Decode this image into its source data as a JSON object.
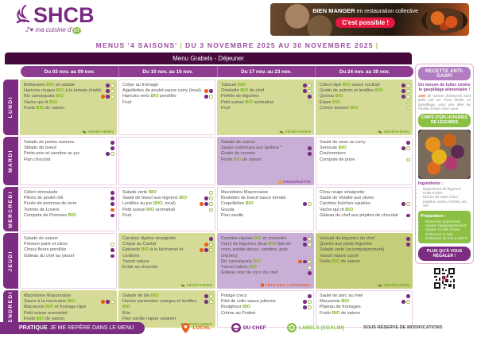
{
  "colors": {
    "brand_purple": "#7b2982",
    "dark_header": "#45093c",
    "week_header": "#8d3c92",
    "cell_green": "#d5db96",
    "cell_purple": "#c9aed6",
    "bio_green": "#7db41e",
    "local_orange": "#e8611c",
    "labels_green": "#8bc045",
    "banner_red": "#e5173f"
  },
  "header": {
    "logo_text": "SHCB",
    "tagline_prefix": "J'♥ ma cuisine d'",
    "tagline_circle": "ici",
    "banner_bold": "BIEN MANGER",
    "banner_rest": "en restauration collective",
    "banner_pill": "C'est possible !"
  },
  "title": {
    "left": "MENUS '4 SAISONS'",
    "sep1": "|",
    "right": "DU 3 NOVEMBRE 2025 AU 30 NOVEMBRE 2025",
    "sep2": "|"
  },
  "menu": {
    "title": "Menu Grabels - Déjeuner",
    "weeks": [
      "Du 03 nov. au 09 nov.",
      "Du 10 nov. au 16 nov.",
      "Du 17 nov. au 23 nov.",
      "Du 24 nov. au 30 nov."
    ],
    "days": [
      {
        "label": "LUNDI",
        "cells": [
          {
            "bg": "green",
            "items": [
              {
                "t": "Betteraves BIO en salade",
                "b": [
                  "C",
                  "E"
                ]
              },
              {
                "t": "Haricots rouges BIO à la tomate (mafé)",
                "b": [
                  "C",
                  "E"
                ]
              },
              {
                "t": "Riz camarguais BIO",
                "b": [
                  "L",
                  "C",
                  "E"
                ]
              },
              {
                "t": "Vache qui rit BIO",
                "b": []
              },
              {
                "t": "Fruits BIO de saison",
                "b": []
              }
            ],
            "tag": {
              "type": "vegetarien",
              "text": "VÉGÉTARIEN"
            }
          },
          {
            "bg": "white",
            "items": [
              {
                "t": "Crêpe au fromage",
                "b": []
              },
              {
                "t": "Aiguillettes de poulet sauce curry (local)",
                "b": [
                  "L",
                  "C"
                ]
              },
              {
                "t": "Haricots verts BIO persillés",
                "b": [
                  "C",
                  "E"
                ]
              },
              {
                "t": "Fruit",
                "b": []
              }
            ]
          },
          {
            "bg": "green",
            "items": [
              {
                "t": "Taboulé BIO",
                "b": [
                  "C",
                  "E"
                ]
              },
              {
                "t": "Omelette BIO du chef",
                "b": [
                  "C",
                  "E"
                ]
              },
              {
                "t": "Poêlée de légumes",
                "b": [
                  "C"
                ]
              },
              {
                "t": "Petit suisse BIO aromatisé",
                "b": [
                  "E"
                ]
              },
              {
                "t": "Fruit",
                "b": []
              }
            ],
            "tag": {
              "type": "vegetarien",
              "text": "VÉGÉTARIEN"
            }
          },
          {
            "bg": "green",
            "items": [
              {
                "t": "Céleri râpé BIO sauce cocktail",
                "b": [
                  "C",
                  "E"
                ]
              },
              {
                "t": "Gratin de potiron et lentilles BIO",
                "b": [
                  "C",
                  "E"
                ]
              },
              {
                "t": "Quinoa BIO",
                "b": [
                  "C",
                  "E"
                ]
              },
              {
                "t": "Edam BIO",
                "b": [
                  "E"
                ]
              },
              {
                "t": "Crème dessert BIO",
                "b": [
                  "E"
                ]
              }
            ],
            "tag": {
              "type": "vegetarien",
              "text": "VÉGÉTARIEN"
            }
          }
        ]
      },
      {
        "label": "MARDI",
        "cells": [
          {
            "bg": "white",
            "items": [
              {
                "t": "Salade de perles marines",
                "b": [
                  "C"
                ]
              },
              {
                "t": "Stifado de boeuf",
                "b": [
                  "C"
                ]
              },
              {
                "t": "Petits pois et carottes au jus",
                "b": [
                  "C",
                  "E"
                ]
              },
              {
                "t": "Flan chocolat",
                "b": []
              }
            ]
          },
          {
            "bg": "white",
            "items": []
          },
          {
            "bg": "purple",
            "items": [
              {
                "t": "Salade de saison",
                "b": []
              },
              {
                "t": "Sauce carbonara aux lardons *",
                "b": [
                  "C"
                ]
              },
              {
                "t": "Gratin de crozets",
                "b": [
                  "C"
                ]
              },
              {
                "t": "Fruits BIO de saison",
                "b": []
              }
            ],
            "tag": {
              "type": "croziflette",
              "text": "CROZIFLETTE"
            }
          },
          {
            "bg": "white",
            "items": [
              {
                "t": "Sauté de veau au curry",
                "b": [
                  "C"
                ]
              },
              {
                "t": "Semoule BIO",
                "b": [
                  "C",
                  "E"
                ]
              },
              {
                "t": "Coulommiers",
                "b": []
              },
              {
                "t": "Compote de poire",
                "b": [
                  "E"
                ]
              }
            ]
          }
        ]
      },
      {
        "label": "MERCREDI",
        "cells": [
          {
            "bg": "white",
            "items": [
              {
                "t": "Céleri rémoulade",
                "b": [
                  "C"
                ]
              },
              {
                "t": "Pilons de poulet rôti",
                "b": [
                  "C"
                ]
              },
              {
                "t": "Purée de pommes de terre",
                "b": [
                  "C"
                ]
              },
              {
                "t": "Tomme de Lozère",
                "b": [
                  "L"
                ]
              },
              {
                "t": "Compote de Pommes BIO",
                "b": [
                  "C"
                ]
              }
            ]
          },
          {
            "bg": "white",
            "items": [
              {
                "t": "Salade verte BIO",
                "b": [
                  "E"
                ]
              },
              {
                "t": "Sauté de boeuf aux oignons BIO",
                "b": [
                  "C",
                  "E"
                ]
              },
              {
                "t": "Lentilles au jus (BIO, local)",
                "b": [
                  "L",
                  "C",
                  "E"
                ]
              },
              {
                "t": "Petit suisse BIO aromatisé",
                "b": [
                  "E"
                ]
              },
              {
                "t": "Fruit",
                "b": []
              }
            ]
          },
          {
            "bg": "white",
            "items": [
              {
                "t": "Macédoine Mayonnaise",
                "b": []
              },
              {
                "t": "Boulettes de boeuf sauce tomate",
                "b": []
              },
              {
                "t": "Coquillettes BIO",
                "b": [
                  "C",
                  "E"
                ]
              },
              {
                "t": "Gouda",
                "b": []
              },
              {
                "t": "Flan vanille",
                "b": []
              }
            ]
          },
          {
            "bg": "white",
            "items": [
              {
                "t": "Chou rouge vinaigrette",
                "b": []
              },
              {
                "t": "Sauté de Volaille aux olives",
                "b": []
              },
              {
                "t": "Carottes fraîches sautées",
                "b": [
                  "C",
                  "E"
                ]
              },
              {
                "t": "Vache qui rit BIO",
                "b": []
              },
              {
                "t": "Gâteau du chef aux pépites de chocolat",
                "b": [
                  "C"
                ]
              }
            ]
          }
        ]
      },
      {
        "label": "JEUDI",
        "cells": [
          {
            "bg": "white",
            "items": [
              {
                "t": "Salade de saison",
                "b": []
              },
              {
                "t": "Poisson pané et citron",
                "b": [
                  "E"
                ]
              },
              {
                "t": "Choux fleurs persillés",
                "b": [
                  "C"
                ]
              },
              {
                "t": "Gâteau du chef au yaourt",
                "b": [
                  "C"
                ]
              }
            ]
          },
          {
            "bg": "green",
            "items": [
              {
                "t": "Carottes râpées vinaigrette",
                "b": [
                  "C"
                ]
              },
              {
                "t": "Crique au Cantal",
                "b": [
                  "L",
                  "E"
                ]
              },
              {
                "t": "Epinards BIO à la béchamel et croûtons",
                "b": [
                  "L",
                  "C",
                  "E"
                ]
              },
              {
                "t": "Yaourt nature",
                "b": []
              },
              {
                "t": "Eclair au chocolat",
                "b": []
              }
            ],
            "tag": {
              "type": "vegetarien",
              "text": "VÉGÉTARIEN"
            }
          },
          {
            "bg": "purple",
            "items": [
              {
                "t": "Carottes râpées BIO et coriandre",
                "b": [
                  "C",
                  "E"
                ]
              },
              {
                "t": "Curry de légumes doux BIO (lait de coco, patate douce, carottes, pois chiches)",
                "b": [
                  "C",
                  "E"
                ]
              },
              {
                "t": "Riz camarguais BIO",
                "b": [
                  "L",
                  "C",
                  "E"
                ]
              },
              {
                "t": "Yaourt nature BIO",
                "b": [
                  "E"
                ]
              },
              {
                "t": "Gâteau noix de coco du chef",
                "b": [
                  "C"
                ]
              }
            ],
            "tag": {
              "type": "lanternes",
              "text": "FÊTE DES LANTERNES"
            }
          },
          {
            "bg": "olive",
            "items": [
              {
                "t": "Velouté de légumes du chef",
                "b": [
                  "C"
                ]
              },
              {
                "t": "Quiche aux petits légumes",
                "b": [
                  "C"
                ]
              },
              {
                "t": "Salade verte (accompagnement)",
                "b": []
              },
              {
                "t": "Yaourt nature sucré",
                "b": []
              },
              {
                "t": "Fruits BIO de saison",
                "b": []
              }
            ],
            "tag": {
              "type": "vegetarien",
              "text": "VÉGÉTARIEN"
            }
          }
        ]
      },
      {
        "label": "VENDREDI",
        "cells": [
          {
            "bg": "green",
            "items": [
              {
                "t": "Macédoine Mayonnaise",
                "b": []
              },
              {
                "t": "Sauce à la mexicaine BIO",
                "b": [
                  "L",
                  "C",
                  "E"
                ]
              },
              {
                "t": "Macaronis BIO et fromage râpé",
                "b": []
              },
              {
                "t": "Petit suisse aromatisé",
                "b": []
              },
              {
                "t": "Fruits BIO de saison",
                "b": []
              }
            ],
            "tag": {
              "type": "vegetarien",
              "text": "VÉGÉTARIEN"
            }
          },
          {
            "bg": "green",
            "items": [
              {
                "t": "Salade de blé BIO",
                "b": [
                  "C",
                  "E"
                ]
              },
              {
                "t": "Hachis parmentier courges et lentilles BIO",
                "b": [
                  "C",
                  "E"
                ]
              },
              {
                "t": "Brie",
                "b": []
              },
              {
                "t": "Flan vanille nappé caramel",
                "b": []
              }
            ],
            "tag": {
              "type": "vegetarien",
              "text": "VÉGÉTARIEN"
            }
          },
          {
            "bg": "white",
            "items": [
              {
                "t": "Potage crecy",
                "b": [
                  "C"
                ]
              },
              {
                "t": "Filet de colin sauce julienne",
                "b": [
                  "C",
                  "E"
                ]
              },
              {
                "t": "Boulghour BIO",
                "b": [
                  "C",
                  "E"
                ]
              },
              {
                "t": "Crème au Praliné",
                "b": []
              }
            ]
          },
          {
            "bg": "white",
            "items": [
              {
                "t": "Sauté de porc au miel",
                "b": [
                  "C"
                ]
              },
              {
                "t": "Macaronis BIO",
                "b": [
                  "C",
                  "E"
                ]
              },
              {
                "t": "Plateau de fromages",
                "b": []
              },
              {
                "t": "Fruits BIO de saison",
                "b": []
              }
            ]
          }
        ]
      }
    ]
  },
  "sidebar": {
    "header": "RECETTE ANTI-GASPI",
    "intro_bold": "Un moyen de lutter contre le gaspillage alimentaire !",
    "para_highlight": "10M",
    "para_rest": " de tonnes d'aliments sont jetés par an. Pour limiter ce gaspillage, voici une idée de recette à faire chez vous.",
    "recipe_title": "CHIPS D'ÉPLUCHURES DE LÉGUMES",
    "ingredients_label": "Ingrédients :",
    "ingredients": [
      "Épluchures de légumes",
      "Huile d'olive",
      "Épices de votre choix : paprika, cumin, herbes, ail...",
      "Sel"
    ],
    "preparation_label": "Préparation :",
    "preparation": [
      "Rincer les épluchures",
      "Ajouter l'assaisonnement",
      "Ajouter un filet d'huile d'olive sur le tout",
      "Enfourner 15 min à 200°C"
    ],
    "closing_pill": "PLUS QU'À VOUS RÉGALER !"
  },
  "footer": {
    "practical_bold": "PRATIQUE",
    "practical_rest": "JE ME REPÈRE DANS LE MENU",
    "legend": [
      {
        "key": "local",
        "label": "LOCAL",
        "color": "#e8611c"
      },
      {
        "key": "chef",
        "label": "DU CHEF",
        "color": "#7c2d81"
      },
      {
        "key": "labels",
        "label": "LABELS (EGALIM)",
        "color": "#8bc045"
      }
    ],
    "disclaimer": "SOUS RÉSERVE DE MODIFICATIONS"
  }
}
